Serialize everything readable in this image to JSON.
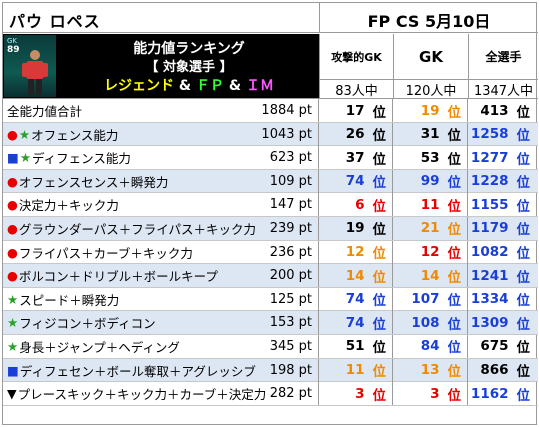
{
  "player_name": "パウ ロペス",
  "edition": "FP CS 5月10日",
  "card": {
    "position": "GK",
    "rating": "89"
  },
  "banner": {
    "line1": "能力値ランキング",
    "line2": "【 対象選手 】",
    "line3": {
      "part1": "レジェンド",
      "amp1": " & ",
      "part2": "ＦＰ",
      "amp2": " & ",
      "part3": "ＩＭ"
    }
  },
  "columns": [
    {
      "header": "攻撃的GK",
      "sub": "83人中"
    },
    {
      "header": "GK",
      "sub": "120人中"
    },
    {
      "header": "全選手",
      "sub": "1347人中"
    }
  ],
  "rank_unit": "位",
  "rows": [
    {
      "marker": "",
      "marker_color": "",
      "label": "全能力値合計",
      "value": "1884 pt",
      "ranks": [
        [
          "17",
          "black"
        ],
        [
          "19",
          "orange"
        ],
        [
          "413",
          "black"
        ]
      ]
    },
    {
      "marker": "●★",
      "marker_color": "red-green",
      "label": "オフェンス能力",
      "value": "1043 pt",
      "ranks": [
        [
          "26",
          "black"
        ],
        [
          "31",
          "black"
        ],
        [
          "1258",
          "blue"
        ]
      ]
    },
    {
      "marker": "■★",
      "marker_color": "blue-green",
      "label": "ディフェンス能力",
      "value": "623 pt",
      "ranks": [
        [
          "37",
          "black"
        ],
        [
          "53",
          "black"
        ],
        [
          "1277",
          "blue"
        ]
      ]
    },
    {
      "marker": "●",
      "marker_color": "red",
      "label": "オフェンスセンス＋瞬発力",
      "value": "109 pt",
      "ranks": [
        [
          "74",
          "blue"
        ],
        [
          "99",
          "blue"
        ],
        [
          "1228",
          "blue"
        ]
      ]
    },
    {
      "marker": "●",
      "marker_color": "red",
      "label": "決定力＋キック力",
      "value": "147 pt",
      "ranks": [
        [
          "6",
          "red"
        ],
        [
          "11",
          "red"
        ],
        [
          "1155",
          "blue"
        ]
      ]
    },
    {
      "marker": "●",
      "marker_color": "red",
      "label": "グラウンダーパス＋フライパス＋キック力",
      "value": "239 pt",
      "ranks": [
        [
          "19",
          "black"
        ],
        [
          "21",
          "orange"
        ],
        [
          "1179",
          "blue"
        ]
      ]
    },
    {
      "marker": "●",
      "marker_color": "red",
      "label": "フライパス＋カーブ＋キック力",
      "value": "236 pt",
      "ranks": [
        [
          "12",
          "orange"
        ],
        [
          "12",
          "red"
        ],
        [
          "1082",
          "blue"
        ]
      ]
    },
    {
      "marker": "●",
      "marker_color": "red",
      "label": "ボルコン＋ドリブル＋ボールキープ",
      "value": "200 pt",
      "ranks": [
        [
          "14",
          "orange"
        ],
        [
          "14",
          "orange"
        ],
        [
          "1241",
          "blue"
        ]
      ]
    },
    {
      "marker": "★",
      "marker_color": "green",
      "label": "スピード＋瞬発力",
      "value": "125 pt",
      "ranks": [
        [
          "74",
          "blue"
        ],
        [
          "107",
          "blue"
        ],
        [
          "1334",
          "blue"
        ]
      ]
    },
    {
      "marker": "★",
      "marker_color": "green",
      "label": "フィジコン＋ボディコン",
      "value": "153 pt",
      "ranks": [
        [
          "74",
          "blue"
        ],
        [
          "108",
          "blue"
        ],
        [
          "1309",
          "blue"
        ]
      ]
    },
    {
      "marker": "★",
      "marker_color": "green",
      "label": "身長＋ジャンプ＋ヘディング",
      "value": "345 pt",
      "ranks": [
        [
          "51",
          "black"
        ],
        [
          "84",
          "blue"
        ],
        [
          "675",
          "black"
        ]
      ]
    },
    {
      "marker": "■",
      "marker_color": "blue",
      "label": "ディフェセン＋ボール奪取＋アグレッシブ",
      "value": "198 pt",
      "ranks": [
        [
          "11",
          "orange"
        ],
        [
          "13",
          "orange"
        ],
        [
          "866",
          "black"
        ]
      ]
    },
    {
      "marker": "▼",
      "marker_color": "black",
      "label": "プレースキック＋キック力＋カーブ＋決定力",
      "value": "282 pt",
      "ranks": [
        [
          "3",
          "red"
        ],
        [
          "3",
          "red"
        ],
        [
          "1162",
          "blue"
        ]
      ]
    }
  ]
}
